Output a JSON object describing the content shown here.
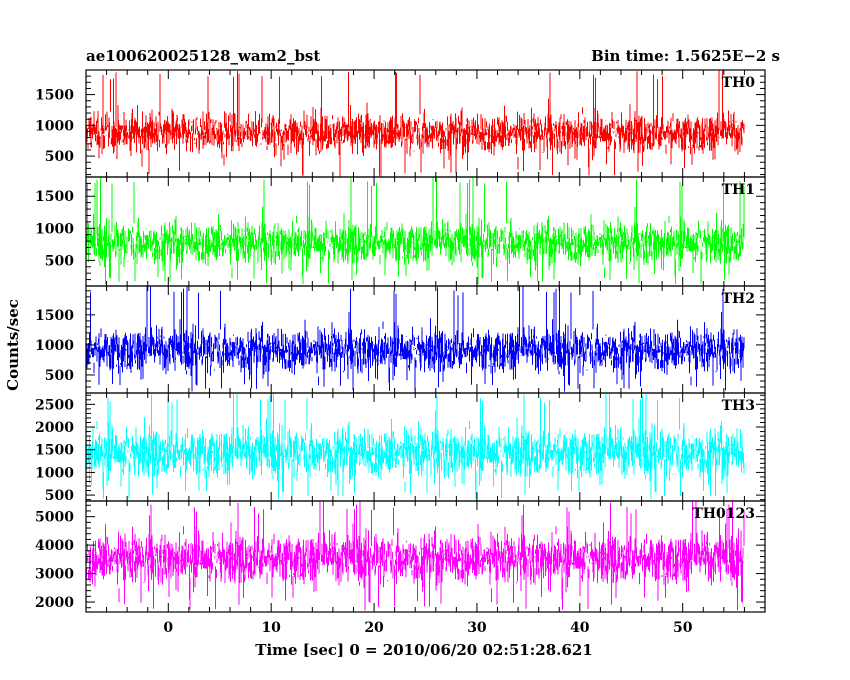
{
  "chart_data": {
    "type": "line",
    "title_left": "ae100620025128_wam2_bst",
    "title_right": "Bin time: 1.5625E−2 s",
    "xlabel": "Time [sec] 0 = 2010/06/20 02:51:28.621",
    "ylabel": "Counts/sec",
    "xlim": [
      -8,
      58
    ],
    "data_x_range": [
      -8,
      56
    ],
    "bin_time": 0.015625,
    "x_ticks": [
      0,
      10,
      20,
      30,
      40,
      50
    ],
    "grid": false,
    "panels": [
      {
        "name": "TH0",
        "color": "#ff0000",
        "ylim": [
          160,
          1900
        ],
        "y_ticks": [
          500,
          1000,
          1500
        ],
        "mean": 880,
        "low": 150,
        "high": 1900,
        "spread": 230
      },
      {
        "name": "TH1",
        "color": "#00ff00",
        "ylim": [
          100,
          1800
        ],
        "y_ticks": [
          500,
          1000,
          1500
        ],
        "mean": 780,
        "low": 100,
        "high": 1800,
        "spread": 230
      },
      {
        "name": "TH2",
        "color": "#0000ff",
        "ylim": [
          200,
          1980
        ],
        "y_ticks": [
          500,
          1000,
          1500
        ],
        "mean": 920,
        "low": 200,
        "high": 1980,
        "spread": 260
      },
      {
        "name": "TH3",
        "color": "#00ffff",
        "ylim": [
          370,
          2750
        ],
        "y_ticks": [
          500,
          1000,
          1500,
          2000,
          2500
        ],
        "mean": 1450,
        "low": 370,
        "high": 2750,
        "spread": 380
      },
      {
        "name": "TH0123",
        "color": "#ff00ff",
        "ylim": [
          1650,
          5550
        ],
        "y_ticks": [
          2000,
          3000,
          4000,
          5000
        ],
        "mean": 3550,
        "low": 1650,
        "high": 5550,
        "spread": 620
      }
    ]
  }
}
